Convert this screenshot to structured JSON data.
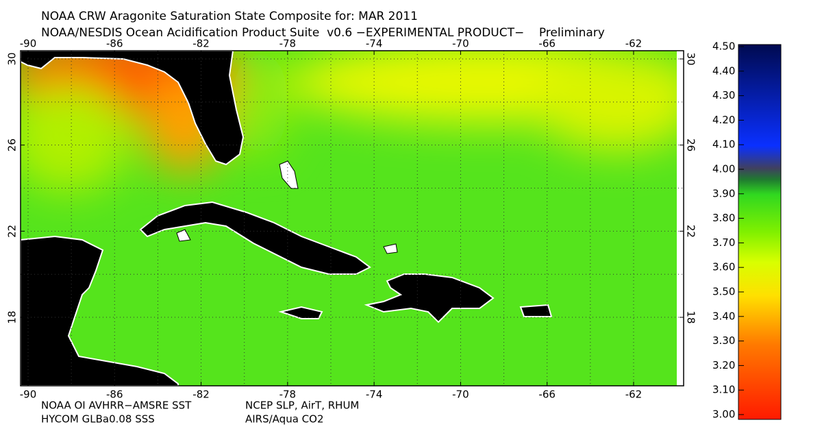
{
  "title": "NOAA CRW Aragonite Saturation State Composite for: MAR 2011",
  "subtitle": "NOAA/NESDIS Ocean Acidification Product Suite  v0.6 −EXPERIMENTAL PRODUCT−    Preliminary",
  "map": {
    "lon_ticks": [
      -90,
      -86,
      -82,
      -78,
      -74,
      -70,
      -66,
      -62
    ],
    "lat_ticks": [
      30,
      26,
      22,
      18
    ]
  },
  "colorbar": {
    "ticks": [
      {
        "value": 3.0,
        "label": "3.00"
      },
      {
        "value": 3.1,
        "label": "3.10"
      },
      {
        "value": 3.2,
        "label": "3.20"
      },
      {
        "value": 3.3,
        "label": "3.30"
      },
      {
        "value": 3.4,
        "label": "3.40"
      },
      {
        "value": 3.5,
        "label": "3.50"
      },
      {
        "value": 3.6,
        "label": "3.60"
      },
      {
        "value": 3.7,
        "label": "3.70"
      },
      {
        "value": 3.8,
        "label": "3.80"
      },
      {
        "value": 3.9,
        "label": "3.90"
      },
      {
        "value": 4.0,
        "label": "4.00"
      },
      {
        "value": 4.1,
        "label": "4.10"
      },
      {
        "value": 4.2,
        "label": "4.20"
      },
      {
        "value": 4.3,
        "label": "4.30"
      },
      {
        "value": 4.4,
        "label": "4.40"
      },
      {
        "value": 4.5,
        "label": "4.50"
      }
    ]
  },
  "credits": [
    "NOAA OI AVHRR−AMSRE SST",
    "NCEP SLP, AirT, RHUM",
    "HYCOM GLBa0.08 SSS",
    "AIRS/Aqua CO2"
  ]
}
